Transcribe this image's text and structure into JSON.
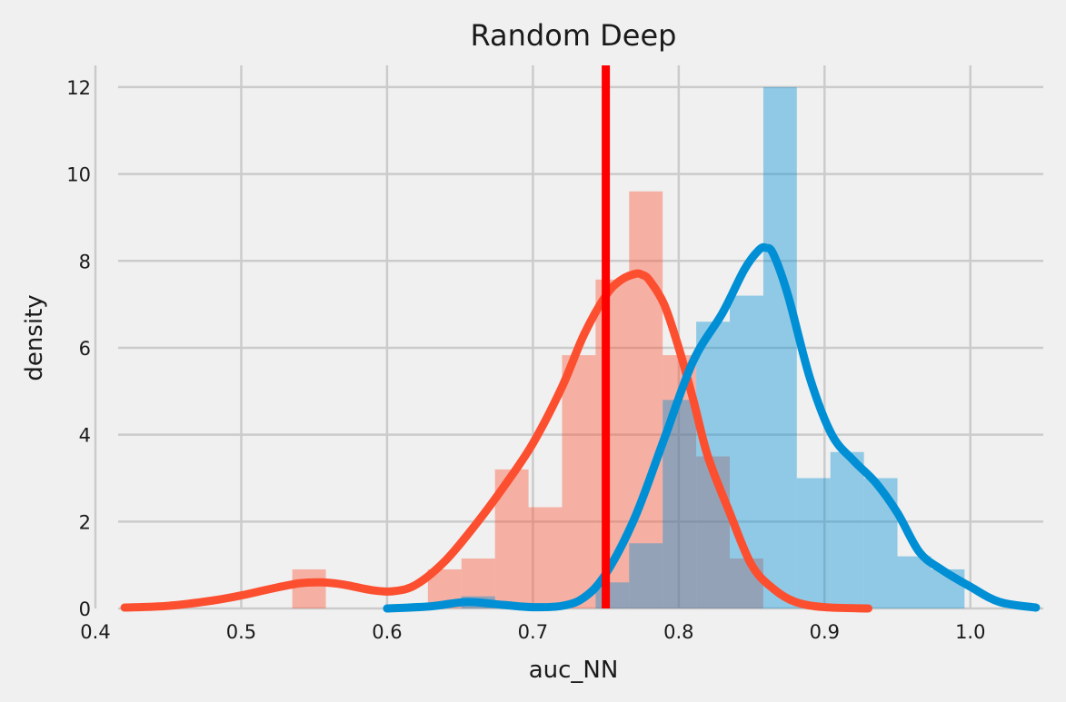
{
  "chart_data": {
    "type": "histogram+kde",
    "title": "Random Deep",
    "xlabel": "auc_NN",
    "ylabel": "density",
    "xlim": [
      0.4,
      1.05
    ],
    "ylim": [
      0,
      12.5
    ],
    "xticks": [
      0.4,
      0.5,
      0.6,
      0.7,
      0.8,
      0.9,
      1.0
    ],
    "xtick_labels": [
      "0.4",
      "0.5",
      "0.6",
      "0.7",
      "0.8",
      "0.9",
      "1.0"
    ],
    "yticks": [
      0,
      2,
      4,
      6,
      8,
      10,
      12
    ],
    "ytick_labels": [
      "0",
      "2",
      "4",
      "6",
      "8",
      "10",
      "12"
    ],
    "grid": true,
    "series": [
      {
        "color": "#fc4f30",
        "bar_color": "#f4a89c",
        "histogram": [
          {
            "x0": 0.535,
            "x1": 0.558,
            "h": 0.9
          },
          {
            "x0": 0.628,
            "x1": 0.651,
            "h": 0.9
          },
          {
            "x0": 0.651,
            "x1": 0.674,
            "h": 1.15
          },
          {
            "x0": 0.674,
            "x1": 0.697,
            "h": 3.2
          },
          {
            "x0": 0.697,
            "x1": 0.72,
            "h": 2.33
          },
          {
            "x0": 0.72,
            "x1": 0.743,
            "h": 5.83
          },
          {
            "x0": 0.743,
            "x1": 0.766,
            "h": 7.57
          },
          {
            "x0": 0.766,
            "x1": 0.789,
            "h": 9.6
          },
          {
            "x0": 0.789,
            "x1": 0.812,
            "h": 5.83
          },
          {
            "x0": 0.812,
            "x1": 0.835,
            "h": 3.5
          },
          {
            "x0": 0.835,
            "x1": 0.858,
            "h": 1.15
          }
        ],
        "kde": {
          "x": [
            0.42,
            0.45,
            0.48,
            0.5,
            0.52,
            0.54,
            0.555,
            0.57,
            0.59,
            0.605,
            0.62,
            0.64,
            0.66,
            0.68,
            0.7,
            0.72,
            0.735,
            0.75,
            0.76,
            0.77,
            0.775,
            0.78,
            0.79,
            0.8,
            0.81,
            0.82,
            0.835,
            0.85,
            0.865,
            0.88,
            0.9,
            0.93
          ],
          "y": [
            0.02,
            0.06,
            0.18,
            0.3,
            0.45,
            0.58,
            0.6,
            0.55,
            0.42,
            0.4,
            0.55,
            1.1,
            1.9,
            2.8,
            3.8,
            5.1,
            6.3,
            7.2,
            7.55,
            7.7,
            7.68,
            7.55,
            7.0,
            6.0,
            4.8,
            3.5,
            2.2,
            1.0,
            0.45,
            0.15,
            0.03,
            0.0
          ]
        }
      },
      {
        "color": "#008fd5",
        "bar_color": "#8ec6e6",
        "histogram": [
          {
            "x0": 0.651,
            "x1": 0.674,
            "h": 0.28
          },
          {
            "x0": 0.743,
            "x1": 0.766,
            "h": 0.6
          },
          {
            "x0": 0.766,
            "x1": 0.789,
            "h": 1.5
          },
          {
            "x0": 0.789,
            "x1": 0.812,
            "h": 4.8
          },
          {
            "x0": 0.812,
            "x1": 0.835,
            "h": 6.6
          },
          {
            "x0": 0.835,
            "x1": 0.858,
            "h": 7.2
          },
          {
            "x0": 0.858,
            "x1": 0.881,
            "h": 12.0
          },
          {
            "x0": 0.881,
            "x1": 0.904,
            "h": 3.0
          },
          {
            "x0": 0.904,
            "x1": 0.927,
            "h": 3.6
          },
          {
            "x0": 0.927,
            "x1": 0.95,
            "h": 3.0
          },
          {
            "x0": 0.95,
            "x1": 0.973,
            "h": 1.2
          },
          {
            "x0": 0.973,
            "x1": 0.996,
            "h": 0.9
          }
        ],
        "kde": {
          "x": [
            0.6,
            0.63,
            0.655,
            0.68,
            0.7,
            0.72,
            0.735,
            0.75,
            0.77,
            0.79,
            0.81,
            0.83,
            0.845,
            0.855,
            0.86,
            0.865,
            0.875,
            0.89,
            0.905,
            0.92,
            0.935,
            0.95,
            0.965,
            0.98,
            1.0,
            1.02,
            1.045
          ],
          "y": [
            0.0,
            0.05,
            0.15,
            0.08,
            0.03,
            0.06,
            0.25,
            0.8,
            2.1,
            3.9,
            5.7,
            6.8,
            7.8,
            8.25,
            8.3,
            8.15,
            7.2,
            5.3,
            4.0,
            3.4,
            2.9,
            2.2,
            1.3,
            0.9,
            0.5,
            0.15,
            0.02
          ]
        }
      }
    ],
    "vline": {
      "x": 0.75,
      "color": "#ff0000"
    }
  }
}
